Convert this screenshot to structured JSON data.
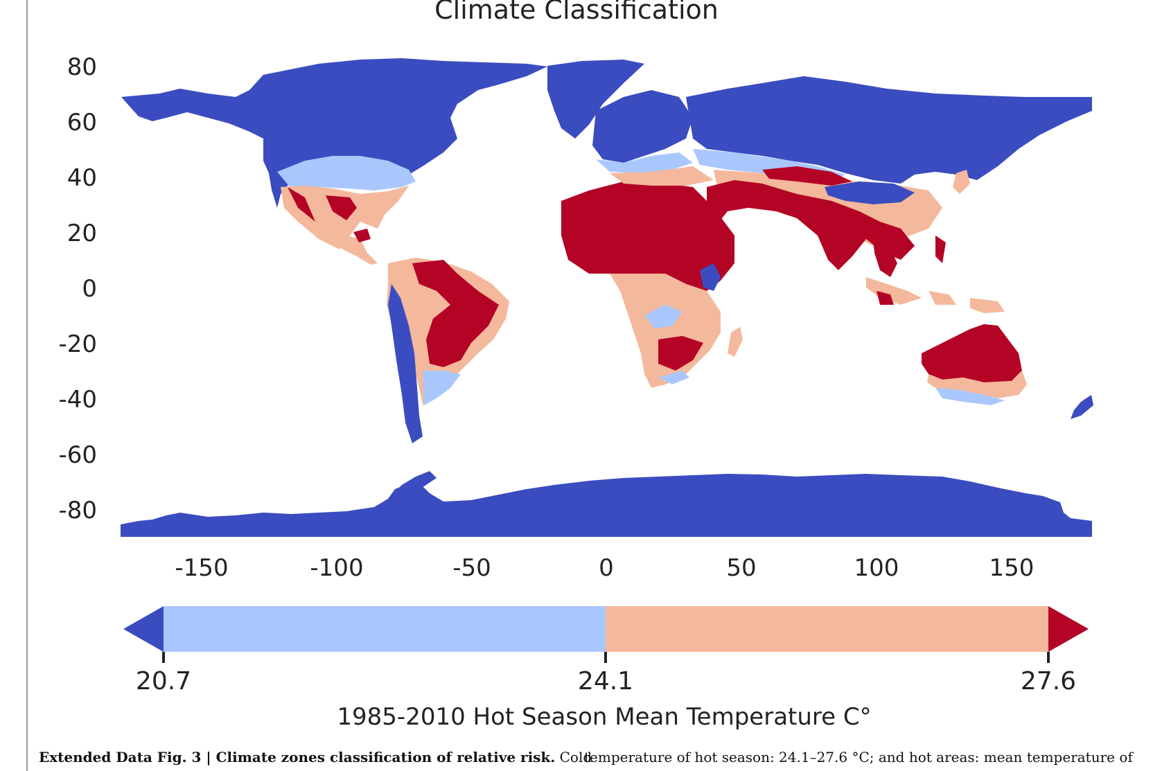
{
  "chart_data": {
    "type": "map",
    "title": "Climate Classification",
    "y_ticks": [
      "80",
      "60",
      "40",
      "20",
      "0",
      "-20",
      "-40",
      "-60",
      "-80"
    ],
    "x_ticks": [
      "-150",
      "-100",
      "-50",
      "0",
      "50",
      "100",
      "150"
    ],
    "xlim": [
      -180,
      180
    ],
    "ylim": [
      -90,
      90
    ],
    "colorbar": {
      "label": "1985-2010 Hot Season Mean Temperature C°",
      "ticks": [
        "20.7",
        "24.1",
        "27.6"
      ],
      "bounds": [
        20.7,
        24.1,
        27.6
      ],
      "extend": "both",
      "colors": {
        "cold": "#3b4cc0",
        "cool": "#aac7fd",
        "warm": "#f4b89c",
        "hot": "#b40426"
      }
    }
  },
  "caption": {
    "left_bold": "Extended Data Fig. 3 | Climate zones classification of relative risk.",
    "left_rest": " Cold",
    "right": "temperature of hot season: 24.1–27.6 °C; and hot areas: mean temperature of"
  }
}
